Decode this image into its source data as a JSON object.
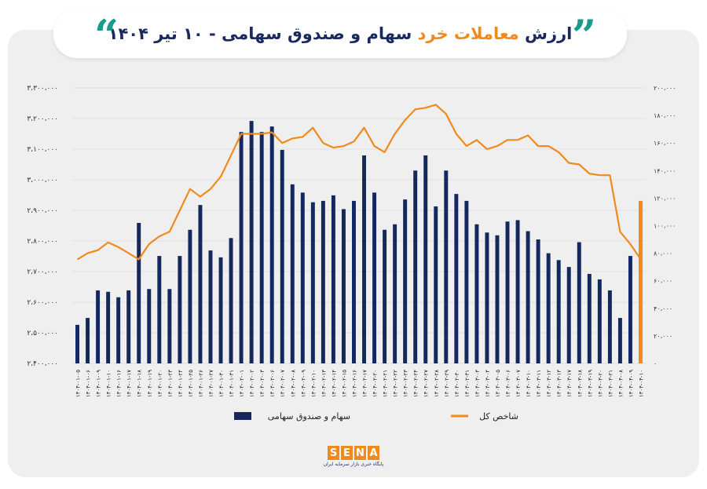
{
  "header": {
    "title_lead": "ارزش ",
    "title_accent": "معاملات خرد",
    "title_tail": " سهام و صندوق سهامی - ۱۰ تیر ۱۴۰۴",
    "quote_left": "“",
    "quote_right": "”"
  },
  "logo": {
    "letters": [
      "S",
      "E",
      "N",
      "A"
    ],
    "subtitle": "پایگاه خبری بازار سرمایه ایران"
  },
  "colors": {
    "bar": "#14285e",
    "line": "#f08a1c",
    "accent": "#f08a1c",
    "teal": "#1c9b8c"
  },
  "chart_data": {
    "type": "bar",
    "left_axis": {
      "ticks": [
        "۲،۴۰۰،۰۰۰",
        "۲،۵۰۰،۰۰۰",
        "۲،۶۰۰،۰۰۰",
        "۲،۷۰۰،۰۰۰",
        "۲،۸۰۰،۰۰۰",
        "۲،۹۰۰،۰۰۰",
        "۳،۰۰۰،۰۰۰",
        "۳،۱۰۰،۰۰۰",
        "۳،۲۰۰،۰۰۰",
        "۳،۳۰۰،۰۰۰"
      ],
      "ylim": [
        2400000,
        3300000
      ]
    },
    "right_axis": {
      "ticks": [
        "۰",
        "۲۰،۰۰۰",
        "۴۰،۰۰۰",
        "۶۰،۰۰۰",
        "۸۰،۰۰۰",
        "۱۰۰،۰۰۰",
        "۱۲۰،۰۰۰",
        "۱۴۰،۰۰۰",
        "۱۶۰،۰۰۰",
        "۱۸۰،۰۰۰",
        "۲۰۰،۰۰۰"
      ],
      "ylim": [
        0,
        200000
      ]
    },
    "categories": [
      "۱۴۰۴-۰۱-۰۵",
      "۱۴۰۴-۰۱-۰۶",
      "۱۴۰۴-۰۱-۰۹",
      "۱۴۰۴-۰۱-۱۰",
      "۱۴۰۴-۰۱-۱۶",
      "۱۴۰۴-۰۱-۱۷",
      "۱۴۰۴-۰۱-۱۸",
      "۱۴۰۴-۰۱-۱۹",
      "۱۴۰۴-۰۱-۲۰",
      "۱۴۰۴-۰۱-۲۳",
      "۱۴۰۴-۰۱-۲۴",
      "۱۴۰۴-۰۱-۲۵",
      "۱۴۰۴-۰۱-۲۶",
      "۱۴۰۴-۰۱-۲۷",
      "۱۴۰۴-۰۱-۳۰",
      "۱۴۰۴-۰۱-۳۱",
      "۱۴۰۴-۰۲-۰۱",
      "۱۴۰۴-۰۲-۰۲",
      "۱۴۰۴-۰۲-۰۳",
      "۱۴۰۴-۰۲-۰۶",
      "۱۴۰۴-۰۲-۰۷",
      "۱۴۰۴-۰۲-۰۸",
      "۱۴۰۴-۰۲-۰۹",
      "۱۴۰۴-۰۲-۱۰",
      "۱۴۰۴-۰۲-۱۳",
      "۱۴۰۴-۰۲-۱۴",
      "۱۴۰۴-۰۲-۱۵",
      "۱۴۰۴-۰۲-۱۶",
      "۱۴۰۴-۰۲-۱۷",
      "۱۴۰۴-۰۲-۲۰",
      "۱۴۰۴-۰۲-۲۱",
      "۱۴۰۴-۰۲-۲۲",
      "۱۴۰۴-۰۲-۲۳",
      "۱۴۰۴-۰۲-۲۴",
      "۱۴۰۴-۰۲-۲۷",
      "۱۴۰۴-۰۲-۲۸",
      "۱۴۰۴-۰۲-۲۹",
      "۱۴۰۴-۰۲-۳۰",
      "۱۴۰۴-۰۲-۳۱",
      "۱۴۰۴-۰۳-۰۳",
      "۱۴۰۴-۰۳-۰۴",
      "۱۴۰۴-۰۳-۰۵",
      "۱۴۰۴-۰۳-۰۶",
      "۱۴۰۴-۰۳-۰۷",
      "۱۴۰۴-۰۳-۱۰",
      "۱۴۰۴-۰۳-۱۱",
      "۱۴۰۴-۰۳-۱۲",
      "۱۴۰۴-۰۳-۱۳",
      "۱۴۰۴-۰۳-۱۷",
      "۱۴۰۴-۰۳-۱۸",
      "۱۴۰۴-۰۳-۱۹",
      "۱۴۰۴-۰۳-۲۰",
      "۱۴۰۴-۰۳-۲۱",
      "۱۴۰۴-۰۴-۰۸",
      "۱۴۰۴-۰۴-۰۹",
      "۱۴۰۴-۰۴-۱۰"
    ],
    "series": [
      {
        "name": "سهام و صندوق سهامی",
        "axis": "right",
        "style": "bar",
        "values": [
          28000,
          33000,
          53000,
          52000,
          48000,
          53000,
          102000,
          54000,
          78000,
          54000,
          78000,
          97000,
          115000,
          82000,
          77000,
          91000,
          168000,
          176000,
          168000,
          172000,
          155000,
          130000,
          124000,
          117000,
          118000,
          122000,
          112000,
          118000,
          151000,
          124000,
          97000,
          101000,
          119000,
          140000,
          151000,
          114000,
          140000,
          123000,
          118000,
          101000,
          95000,
          93000,
          103000,
          104000,
          96000,
          90000,
          80000,
          75000,
          70000,
          88000,
          65000,
          61000,
          53000,
          33000,
          78000,
          118000
        ]
      },
      {
        "name": "شاخص کل",
        "axis": "left",
        "style": "line",
        "values": [
          2740000,
          2760000,
          2770000,
          2795000,
          2780000,
          2760000,
          2740000,
          2790000,
          2815000,
          2830000,
          2900000,
          2970000,
          2945000,
          2970000,
          3010000,
          3080000,
          3150000,
          3150000,
          3150000,
          3155000,
          3120000,
          3135000,
          3140000,
          3170000,
          3120000,
          3105000,
          3110000,
          3125000,
          3170000,
          3110000,
          3090000,
          3150000,
          3195000,
          3230000,
          3235000,
          3245000,
          3215000,
          3150000,
          3110000,
          3130000,
          3100000,
          3110000,
          3130000,
          3130000,
          3145000,
          3110000,
          3110000,
          3090000,
          3055000,
          3050000,
          3020000,
          3015000,
          3015000,
          2830000,
          2790000,
          2740000
        ]
      }
    ],
    "legend": [
      {
        "label": "سهام و صندوق سهامی",
        "kind": "bar"
      },
      {
        "label": "شاخص کل",
        "kind": "line"
      }
    ],
    "legend_position": "bottom"
  }
}
